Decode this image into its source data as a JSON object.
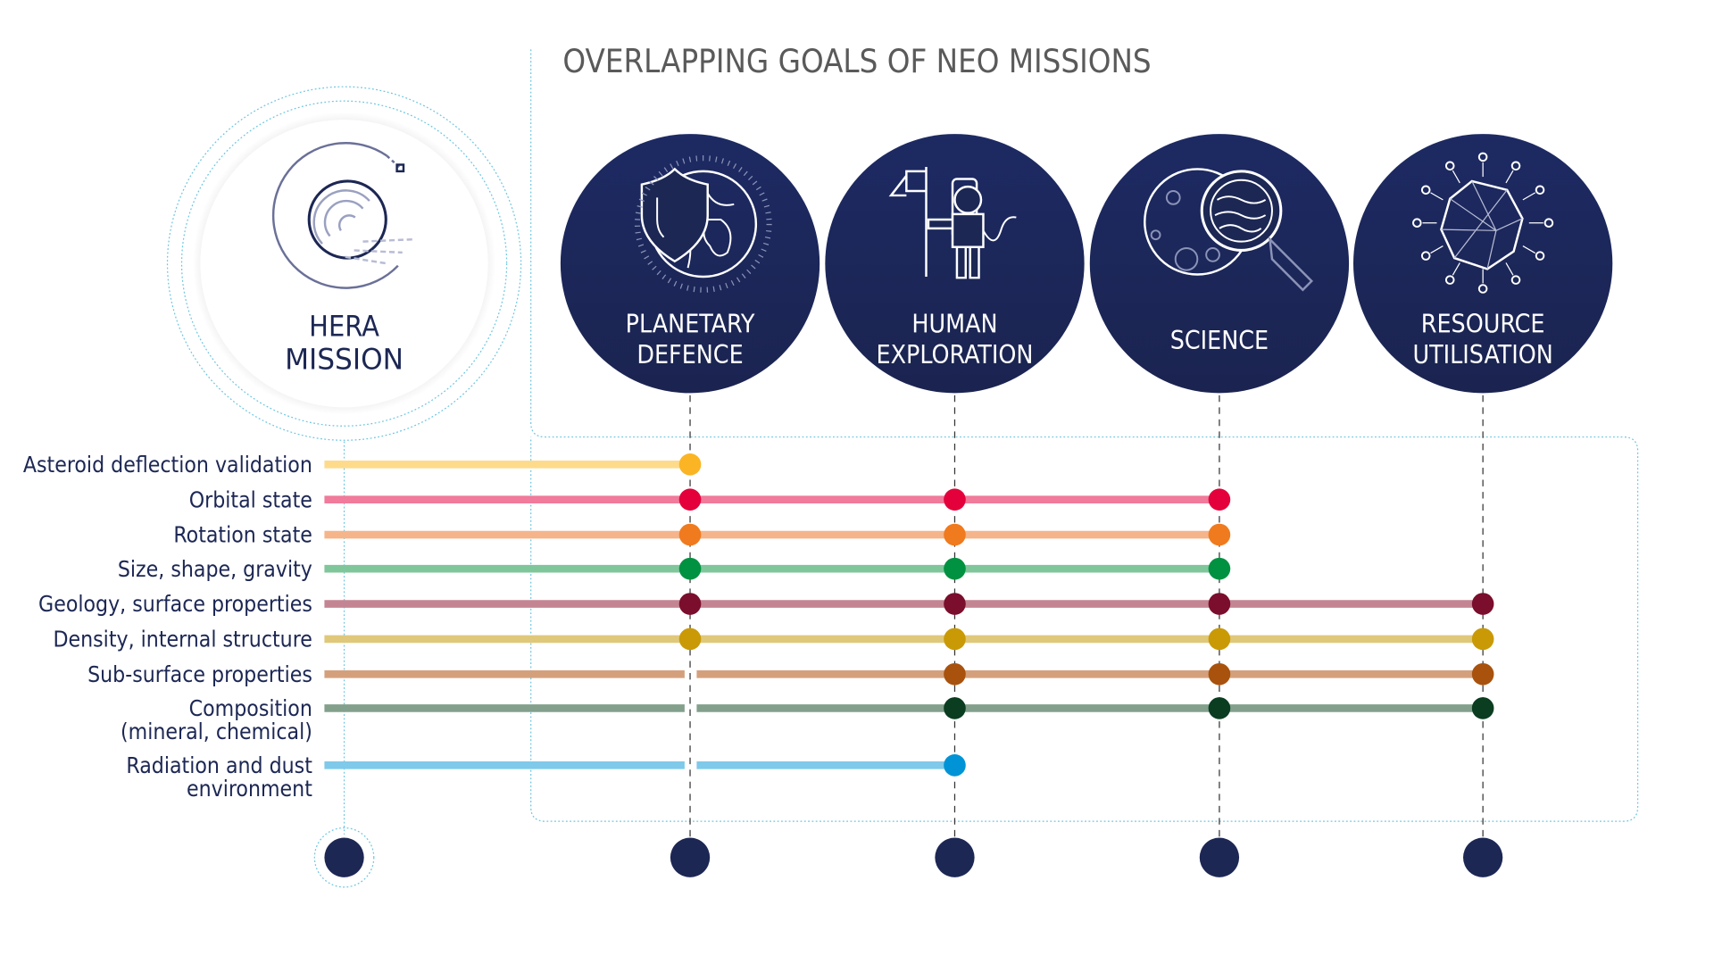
{
  "title": "OVERLAPPING GOALS OF NEO MISSIONS",
  "hera": {
    "line1": "HERA",
    "line2": "MISSION",
    "icon": "hera-logo-icon"
  },
  "missions": [
    {
      "line1": "PLANETARY",
      "line2": "DEFENCE",
      "icon": "shield-globe-icon"
    },
    {
      "line1": "HUMAN",
      "line2": "EXPLORATION",
      "icon": "astronaut-flag-icon"
    },
    {
      "line1": "SCIENCE",
      "line2": "",
      "icon": "magnifier-planet-icon"
    },
    {
      "line1": "RESOURCE",
      "line2": "UTILISATION",
      "icon": "asteroid-network-icon"
    }
  ],
  "goals": [
    {
      "label": [
        "Asteroid deflection validation"
      ],
      "line": "#fddb8a",
      "dot": "#fbb424",
      "missions": [
        0
      ],
      "gap": false
    },
    {
      "label": [
        "Orbital state"
      ],
      "line": "#f07b9b",
      "dot": "#e4003a",
      "missions": [
        0,
        1,
        2
      ],
      "gap": false
    },
    {
      "label": [
        "Rotation state"
      ],
      "line": "#f5b48a",
      "dot": "#f07a1e",
      "missions": [
        0,
        1,
        2
      ],
      "gap": false
    },
    {
      "label": [
        "Size, shape, gravity"
      ],
      "line": "#7fc79a",
      "dot": "#009141",
      "missions": [
        0,
        1,
        2
      ],
      "gap": false
    },
    {
      "label": [
        "Geology, surface properties"
      ],
      "line": "#c48592",
      "dot": "#7a0e2c",
      "missions": [
        0,
        1,
        2,
        3
      ],
      "gap": false
    },
    {
      "label": [
        "Density, internal structure"
      ],
      "line": "#e0c87a",
      "dot": "#c99a06",
      "missions": [
        0,
        1,
        2,
        3
      ],
      "gap": false
    },
    {
      "label": [
        "Sub-surface properties"
      ],
      "line": "#d4a07c",
      "dot": "#a8520e",
      "missions": [
        1,
        2,
        3
      ],
      "gap": true
    },
    {
      "label": [
        "Composition",
        "(mineral, chemical)"
      ],
      "line": "#82a08c",
      "dot": "#0b3d20",
      "missions": [
        1,
        2,
        3
      ],
      "gap": true
    },
    {
      "label": [
        "Radiation and dust",
        "environment"
      ],
      "line": "#7fc9ea",
      "dot": "#0094d6",
      "missions": [
        1
      ],
      "gap": true
    }
  ],
  "colors": {
    "navy": "#1c2754",
    "title": "#5a5a5a",
    "dotted": "#6cc5e0",
    "label": "#1c2754"
  }
}
